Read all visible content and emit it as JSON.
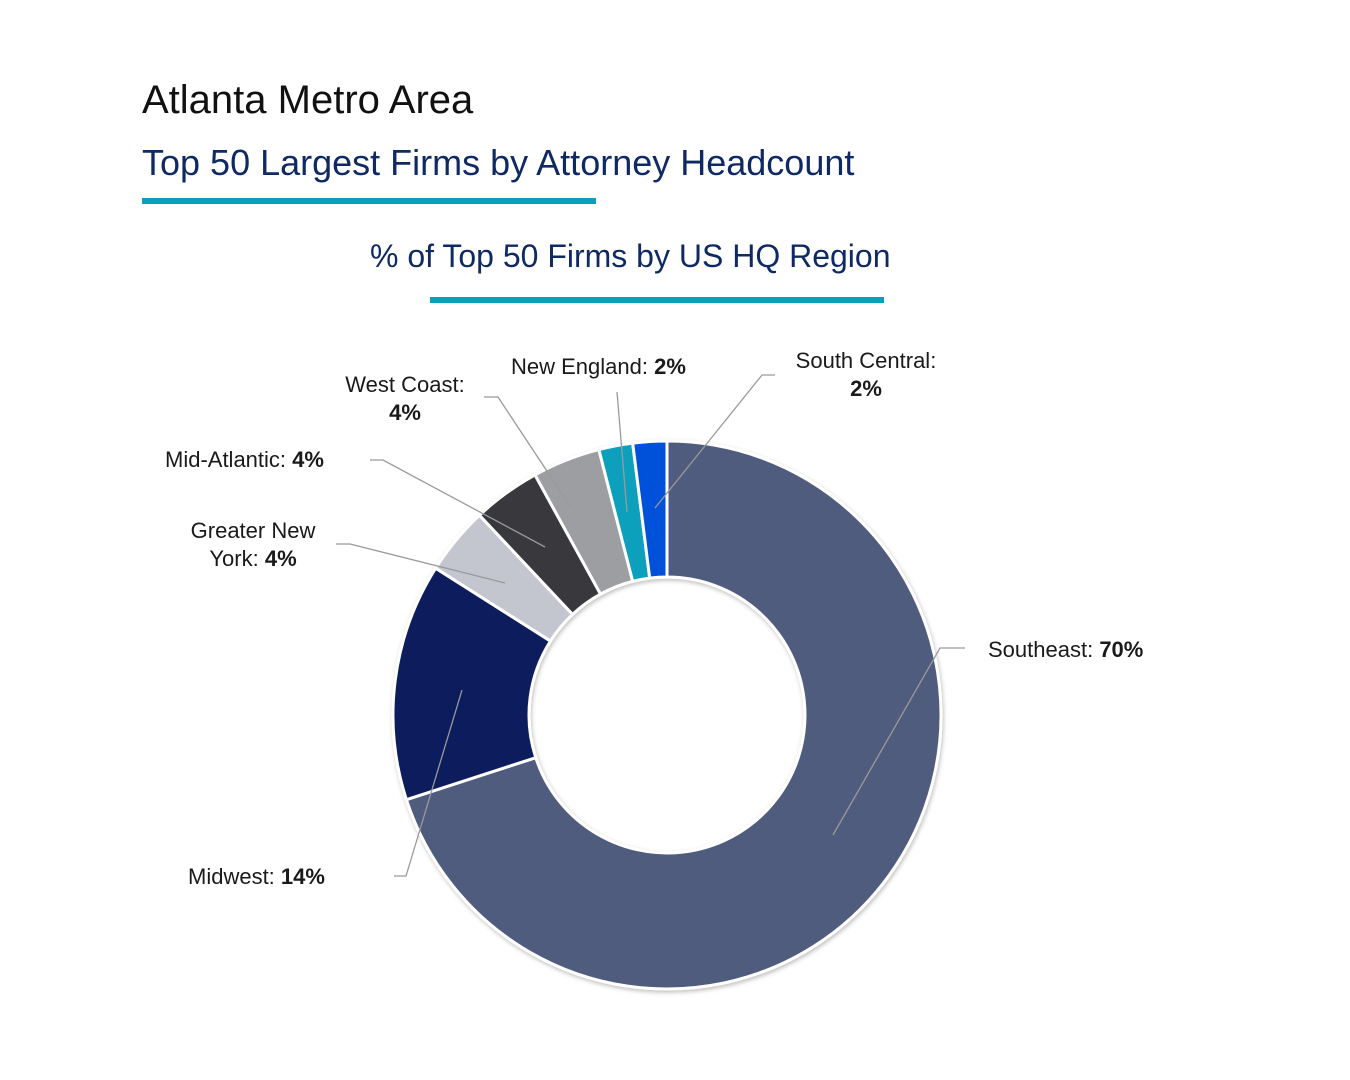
{
  "header": {
    "title": "Atlanta Metro Area",
    "subtitle": "Top 50 Largest Firms by Attorney Headcount"
  },
  "colors": {
    "accent_rule": "#0aa0bd",
    "title_navy": "#0f2a63"
  },
  "chart_data": {
    "type": "pie",
    "variant": "donut",
    "title": "% of Top 50 Firms by US HQ Region",
    "unit": "%",
    "categories": [
      "Southeast",
      "Midwest",
      "Greater New York",
      "Mid-Atlantic",
      "West Coast",
      "New England",
      "South Central"
    ],
    "values": [
      70,
      14,
      4,
      4,
      4,
      2,
      2
    ],
    "colors": [
      "#4f5b7e",
      "#0d1f5c",
      "#c3c5cf",
      "#38383d",
      "#9d9ea2",
      "#0aa0bd",
      "#0051d9"
    ],
    "labels": [
      {
        "name": "Southeast:",
        "value": "70%"
      },
      {
        "name": "Midwest:",
        "value": "14%"
      },
      {
        "name": "Greater New",
        "name2": "York:",
        "value": "4%"
      },
      {
        "name": "Mid-Atlantic:",
        "value": "4%"
      },
      {
        "name": "West Coast:",
        "value": "4%"
      },
      {
        "name": "New England:",
        "value": "2%"
      },
      {
        "name": "South Central:",
        "value": "2%"
      }
    ],
    "legend": "data labels with leader lines"
  }
}
